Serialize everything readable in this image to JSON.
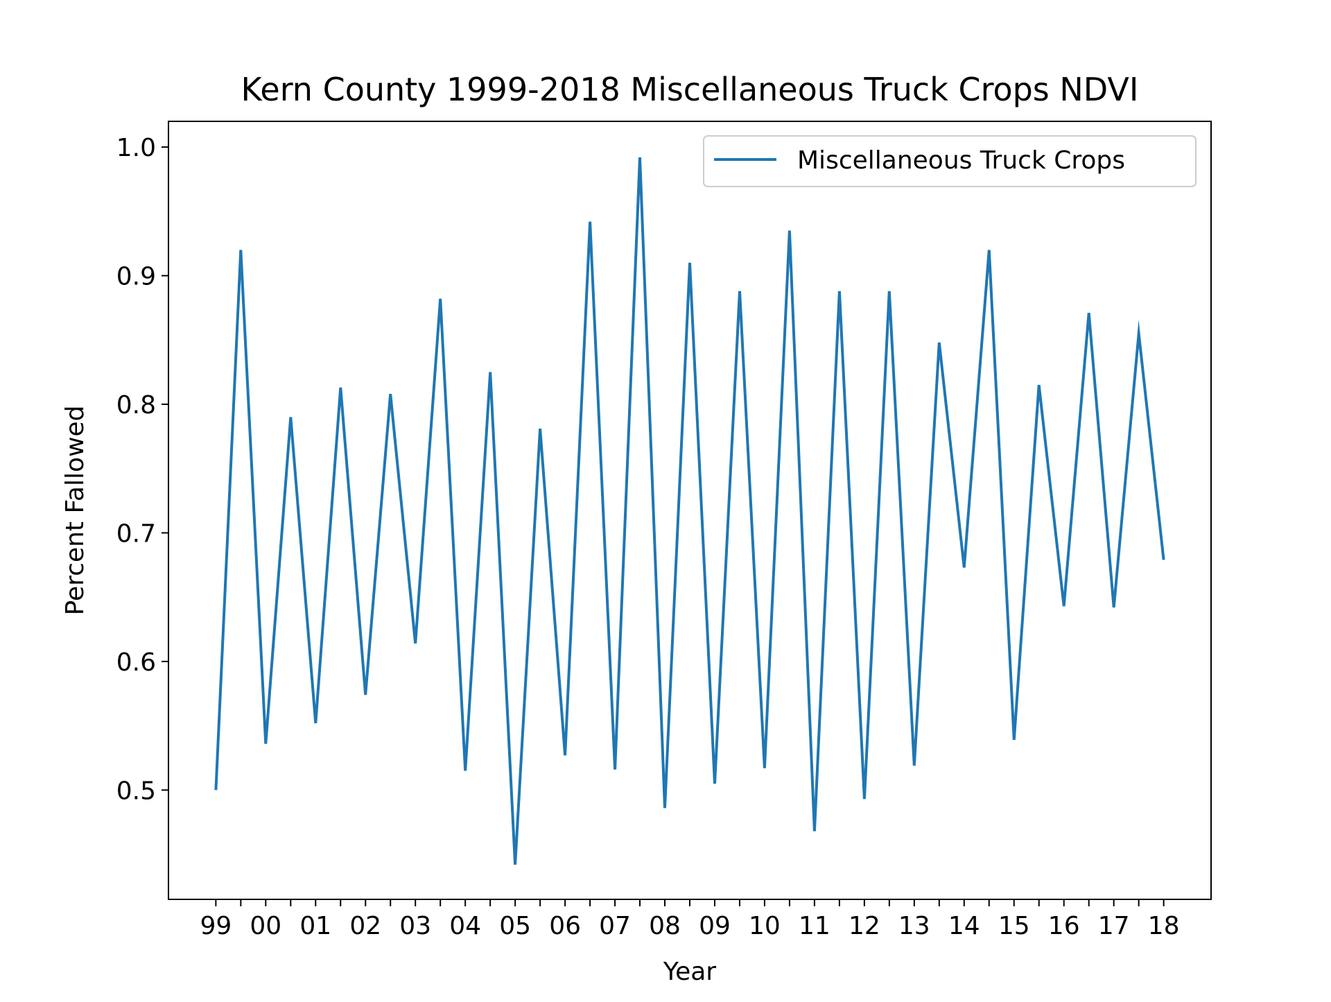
{
  "chart_data": {
    "type": "line",
    "title": "Kern County 1999-2018 Miscellaneous Truck Crops NDVI",
    "xlabel": "Year",
    "ylabel": "Percent Fallowed",
    "x_tick_labels": [
      "99",
      "00",
      "01",
      "02",
      "03",
      "04",
      "05",
      "06",
      "07",
      "08",
      "09",
      "10",
      "11",
      "12",
      "13",
      "14",
      "15",
      "16",
      "17",
      "18"
    ],
    "y_ticks": [
      0.5,
      0.6,
      0.7,
      0.8,
      0.9,
      1.0
    ],
    "y_tick_labels": [
      "0.5",
      "0.6",
      "0.7",
      "0.8",
      "0.9",
      "1.0"
    ],
    "xlim": [
      -0.95,
      19.95
    ],
    "ylim": [
      0.415,
      1.02
    ],
    "legend": {
      "position": "top-right",
      "entries": [
        "Miscellaneous Truck Crops"
      ]
    },
    "grid": false,
    "series": [
      {
        "name": "Miscellaneous Truck Crops",
        "color": "#1f77b4",
        "x": [
          0,
          0.5,
          1,
          1.5,
          2,
          2.5,
          3,
          3.5,
          4,
          4.5,
          5,
          5.5,
          6,
          6.5,
          7,
          7.5,
          8,
          8.5,
          9,
          9.5,
          10,
          10.5,
          11,
          11.5,
          12,
          12.5,
          13,
          13.5,
          14,
          14.5,
          15,
          15.5,
          16,
          16.5,
          17,
          17.5,
          18,
          18.5,
          19
        ],
        "values": [
          0.5,
          0.92,
          0.536,
          0.79,
          0.552,
          0.813,
          0.574,
          0.808,
          0.614,
          0.882,
          0.515,
          0.825,
          0.442,
          0.781,
          0.527,
          0.942,
          0.516,
          0.992,
          0.486,
          0.91,
          0.505,
          0.888,
          0.517,
          0.935,
          0.468,
          0.888,
          0.493,
          0.888,
          0.519,
          0.848,
          0.673,
          0.92,
          0.539,
          0.815,
          0.643,
          0.871,
          0.642,
          0.855,
          0.679
        ]
      }
    ]
  }
}
